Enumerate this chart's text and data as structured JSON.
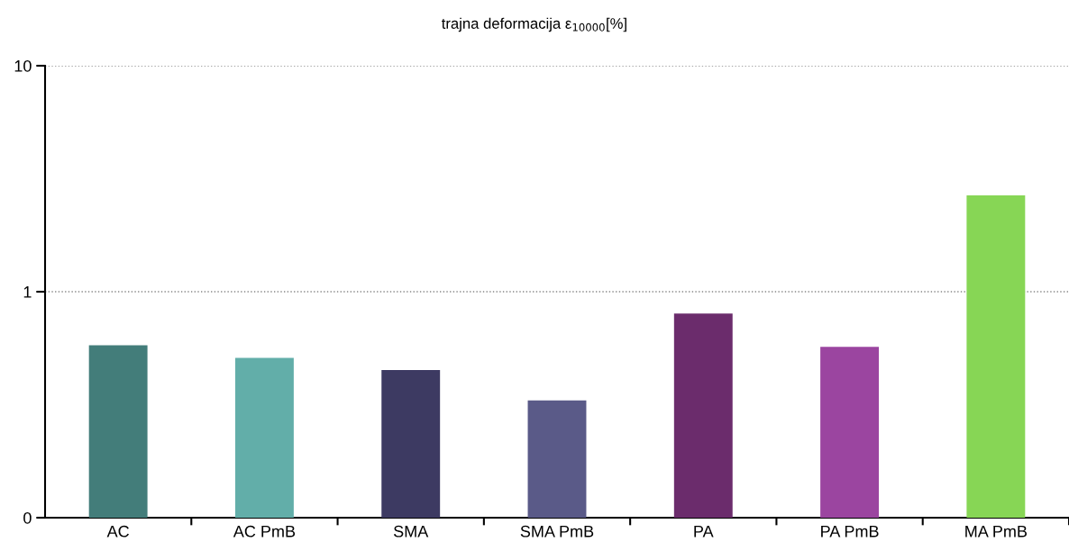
{
  "chart_data": {
    "type": "bar",
    "title": "trajna deformacija ε$_{10000}$[%]",
    "categories": [
      "AC",
      "AC PmB",
      "SMA",
      "SMA PmB",
      "PA",
      "PA PmB",
      "MA PmB"
    ],
    "values": [
      0.58,
      0.51,
      0.45,
      0.33,
      0.8,
      0.57,
      2.67
    ],
    "colors": [
      "#437d7a",
      "#62aea9",
      "#3d3a62",
      "#5a5a88",
      "#6b2c6c",
      "#9b45a0",
      "#87d655"
    ],
    "log": "y",
    "ylim": [
      0.1,
      10
    ],
    "yticks": [
      {
        "value": 0.1,
        "label": "0"
      },
      1,
      10
    ],
    "grid": "y"
  }
}
